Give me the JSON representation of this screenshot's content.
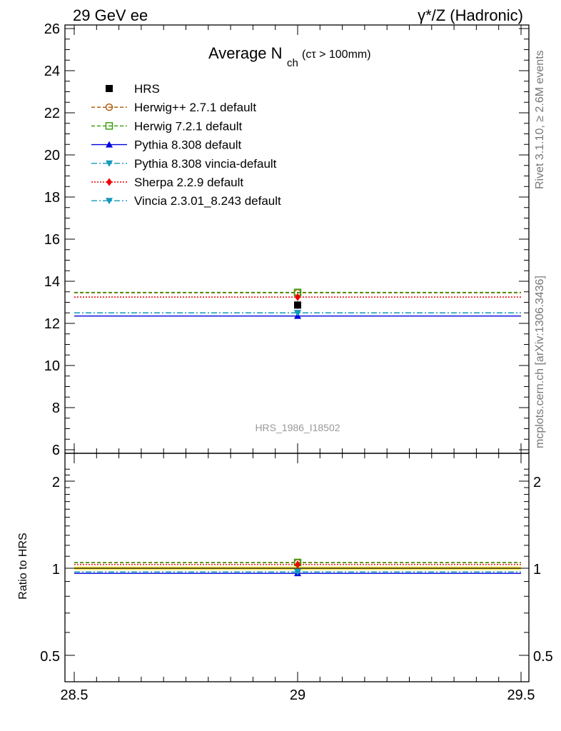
{
  "header": {
    "left_title": "29 GeV ee",
    "right_title": "γ*/Z (Hadronic)"
  },
  "plot_title": {
    "main": "Average N",
    "subscript": "ch",
    "cut": "(cτ > 100mm)"
  },
  "side_notes": {
    "rivet": "Rivet 3.1.10, ≥ 2.6M events",
    "mcplots": "mcplots.cern.ch [arXiv:1306.3436]"
  },
  "analysis_label": "HRS_1986_I18502",
  "ratio_ylabel": "Ratio to HRS",
  "chart_data": [
    {
      "type": "line",
      "panel": "main",
      "title": "Average Nch (cτ > 100mm)",
      "xlabel": "",
      "ylabel": "",
      "xlim": [
        28.5,
        29.5
      ],
      "ylim": [
        6,
        26.3
      ],
      "y_ticks": [
        6,
        8,
        10,
        12,
        14,
        16,
        18,
        20,
        22,
        24,
        26
      ],
      "x_ticks": [
        28.5,
        29,
        29.5
      ],
      "legend_position": "top-left",
      "series": [
        {
          "name": "HRS",
          "x": [
            29
          ],
          "y": [
            12.87
          ],
          "x_range": [
            28.5,
            29.5
          ],
          "color": "#000000",
          "marker": "square-filled",
          "style": "data",
          "yerr": 0.18
        },
        {
          "name": "Herwig++ 2.7.1 default",
          "x": [
            29
          ],
          "y": [
            13.45
          ],
          "x_range": [
            28.5,
            29.5
          ],
          "color": "#aa5500",
          "marker": "circle-open",
          "style": "dashed"
        },
        {
          "name": "Herwig 7.2.1 default",
          "x": [
            29
          ],
          "y": [
            13.47
          ],
          "x_range": [
            28.5,
            29.5
          ],
          "color": "#339900",
          "marker": "square-open",
          "style": "dashed"
        },
        {
          "name": "Pythia 8.308 default",
          "x": [
            29
          ],
          "y": [
            12.35
          ],
          "x_range": [
            28.5,
            29.5
          ],
          "color": "#0000dd",
          "marker": "triangle-up",
          "style": "solid"
        },
        {
          "name": "Pythia 8.308 vincia-default",
          "x": [
            29
          ],
          "y": [
            12.5
          ],
          "x_range": [
            28.5,
            29.5
          ],
          "color": "#1199bb",
          "marker": "triangle-down",
          "style": "dashdot"
        },
        {
          "name": "Sherpa 2.2.9 default",
          "x": [
            29
          ],
          "y": [
            13.25
          ],
          "x_range": [
            28.5,
            29.5
          ],
          "color": "#ee0000",
          "marker": "diamond",
          "style": "dotted"
        },
        {
          "name": "Vincia 2.3.01_8.243 default",
          "x": [
            29
          ],
          "y": [
            12.5
          ],
          "x_range": [
            28.5,
            29.5
          ],
          "color": "#1199bb",
          "marker": "triangle-down",
          "style": "dashdot"
        }
      ]
    },
    {
      "type": "line",
      "panel": "ratio",
      "ylabel": "Ratio to HRS",
      "xlim": [
        28.5,
        29.5
      ],
      "ylim": [
        0.4,
        2.4
      ],
      "y_scale": "log",
      "y_ticks": [
        0.5,
        1,
        2
      ],
      "x_ticks": [
        28.5,
        29,
        29.5
      ],
      "band": {
        "low": 0.986,
        "high": 1.014,
        "color": "#ffee55"
      },
      "series": [
        {
          "name": "HRS",
          "y": [
            1.0
          ]
        },
        {
          "name": "Herwig++ 2.7.1 default",
          "y": [
            1.045
          ]
        },
        {
          "name": "Herwig 7.2.1 default",
          "y": [
            1.047
          ]
        },
        {
          "name": "Pythia 8.308 default",
          "y": [
            0.96
          ]
        },
        {
          "name": "Pythia 8.308 vincia-default",
          "y": [
            0.971
          ]
        },
        {
          "name": "Sherpa 2.2.9 default",
          "y": [
            1.03
          ]
        },
        {
          "name": "Vincia 2.3.01_8.243 default",
          "y": [
            0.971
          ]
        }
      ]
    }
  ]
}
